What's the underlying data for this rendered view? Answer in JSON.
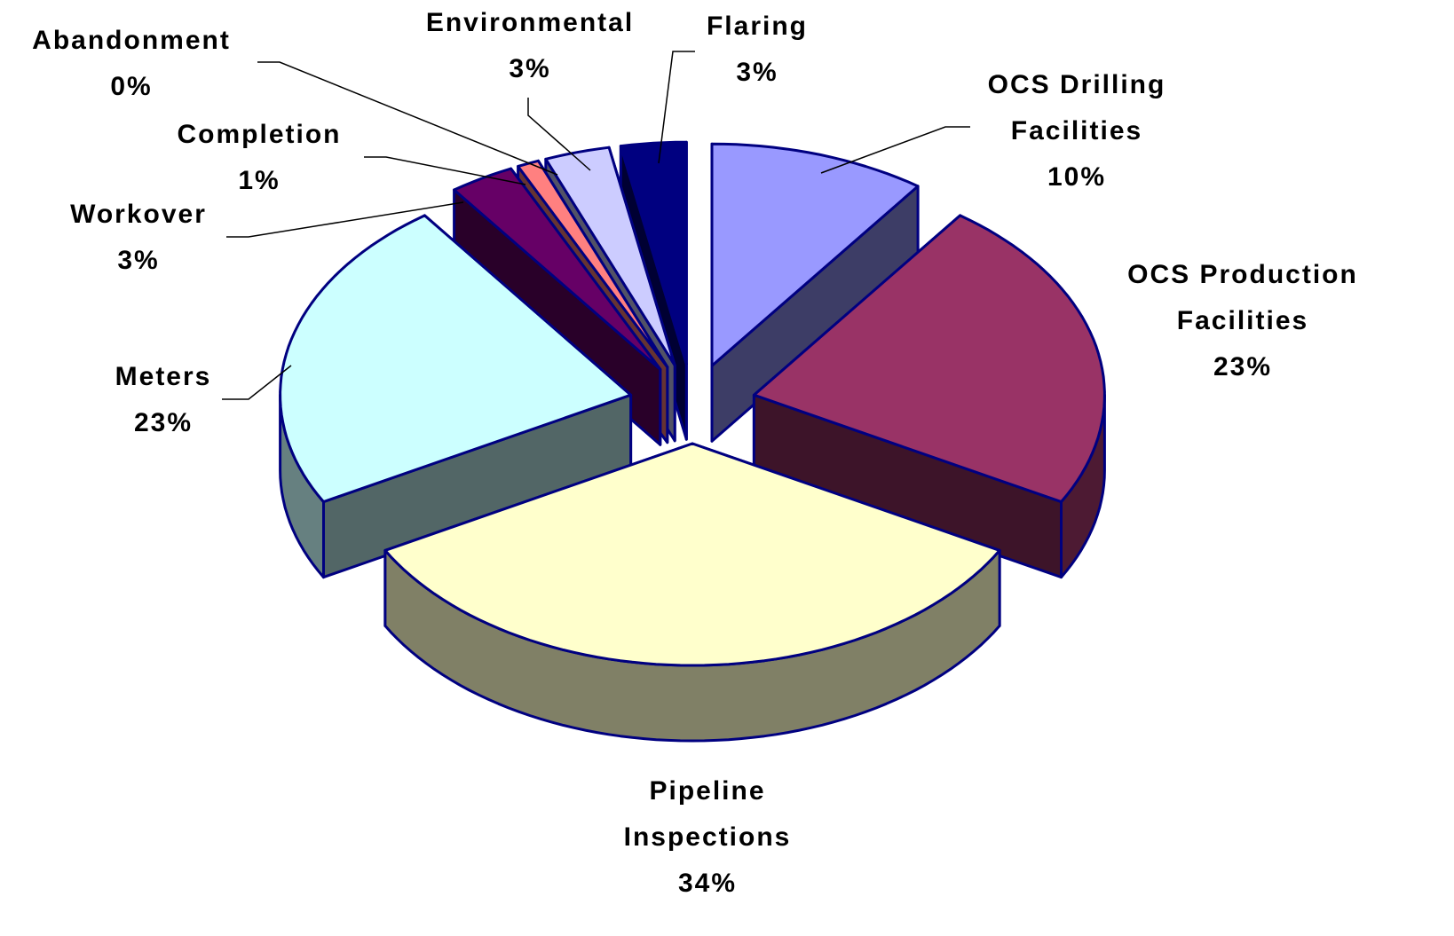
{
  "chart_data": {
    "type": "pie3d",
    "categories": [
      "OCS Drilling Facilities",
      "OCS Production Facilities",
      "Pipeline Inspections",
      "Meters",
      "Workover",
      "Completion",
      "Abandonment",
      "Environmental",
      "Flaring"
    ],
    "values": [
      10,
      23,
      34,
      23,
      3,
      1,
      0,
      3,
      3
    ],
    "value_labels": [
      "10%",
      "23%",
      "34%",
      "23%",
      "3%",
      "1%",
      "0%",
      "3%",
      "3%"
    ],
    "colors": [
      "#9999ff",
      "#993366",
      "#ffffcc",
      "#ccffff",
      "#660066",
      "#ff8080",
      "#0066cc",
      "#ccccff",
      "#000080"
    ]
  }
}
